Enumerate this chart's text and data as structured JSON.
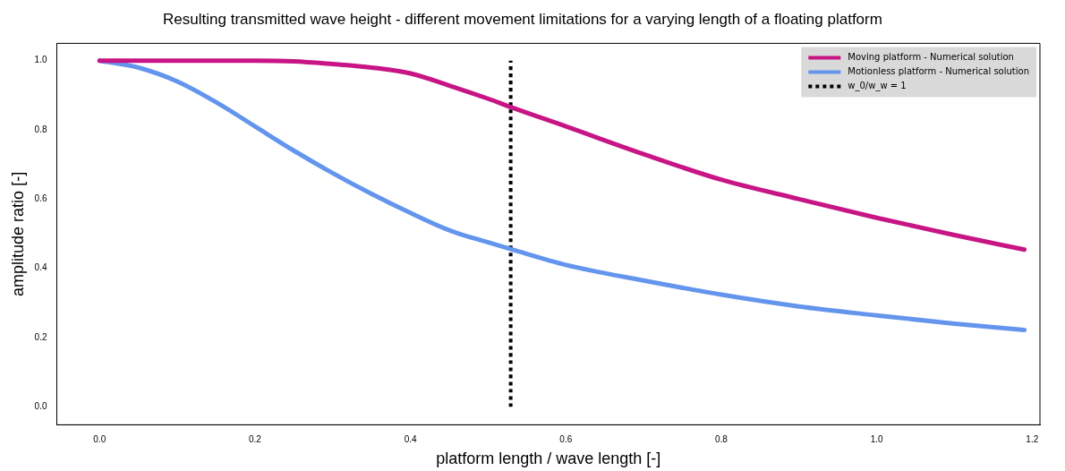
{
  "chart_data": {
    "type": "line",
    "title": "Resulting transmitted wave height - different movement limitations for a varying length of a floating platform",
    "xlabel": "platform length / wave length [-]",
    "ylabel": "amplitude ratio [-]",
    "xlim": [
      -0.055,
      1.21
    ],
    "xticks": [
      {
        "value": 0,
        "label": "0.0"
      },
      0.2,
      0.4,
      0.6,
      0.8,
      {
        "value": 1,
        "label": "1.0"
      },
      1.2
    ],
    "ylim": [
      -0.052,
      1.05
    ],
    "yticks": [
      {
        "value": 0,
        "label": "0.0"
      },
      0.2,
      0.4,
      0.6,
      0.8,
      {
        "value": 1,
        "label": "1.0"
      }
    ],
    "grid": false,
    "legend": "top right",
    "marker": "none",
    "series": [
      {
        "name": "Moving platform - Numerical solution",
        "color": "#c71585",
        "line_style": "solid",
        "x": [
          0,
          0.1,
          0.2,
          0.25,
          0.3,
          0.35,
          0.4,
          0.45,
          0.5,
          0.53,
          0.6,
          0.7,
          0.8,
          0.9,
          1.0,
          1.1,
          1.19
        ],
        "values": [
          1.0,
          1.0,
          1.0,
          0.998,
          0.99,
          0.98,
          0.963,
          0.928,
          0.89,
          0.865,
          0.81,
          0.73,
          0.656,
          0.6,
          0.546,
          0.496,
          0.454
        ]
      },
      {
        "name": "Motionless platform - Numerical solution",
        "color": "#6495ed",
        "line_style": "solid",
        "x": [
          0,
          0.05,
          0.1,
          0.15,
          0.2,
          0.25,
          0.3,
          0.35,
          0.4,
          0.45,
          0.5,
          0.53,
          0.6,
          0.7,
          0.8,
          0.9,
          1.0,
          1.1,
          1.19
        ],
        "values": [
          1.0,
          0.98,
          0.94,
          0.88,
          0.81,
          0.74,
          0.675,
          0.615,
          0.56,
          0.51,
          0.475,
          0.455,
          0.41,
          0.365,
          0.324,
          0.29,
          0.264,
          0.24,
          0.222
        ]
      },
      {
        "name": "w_0/w_w = 1",
        "color": "#000000",
        "line_style": "dotted",
        "x": [
          0.529,
          0.529
        ],
        "values": [
          0.0,
          1.0
        ]
      }
    ]
  }
}
